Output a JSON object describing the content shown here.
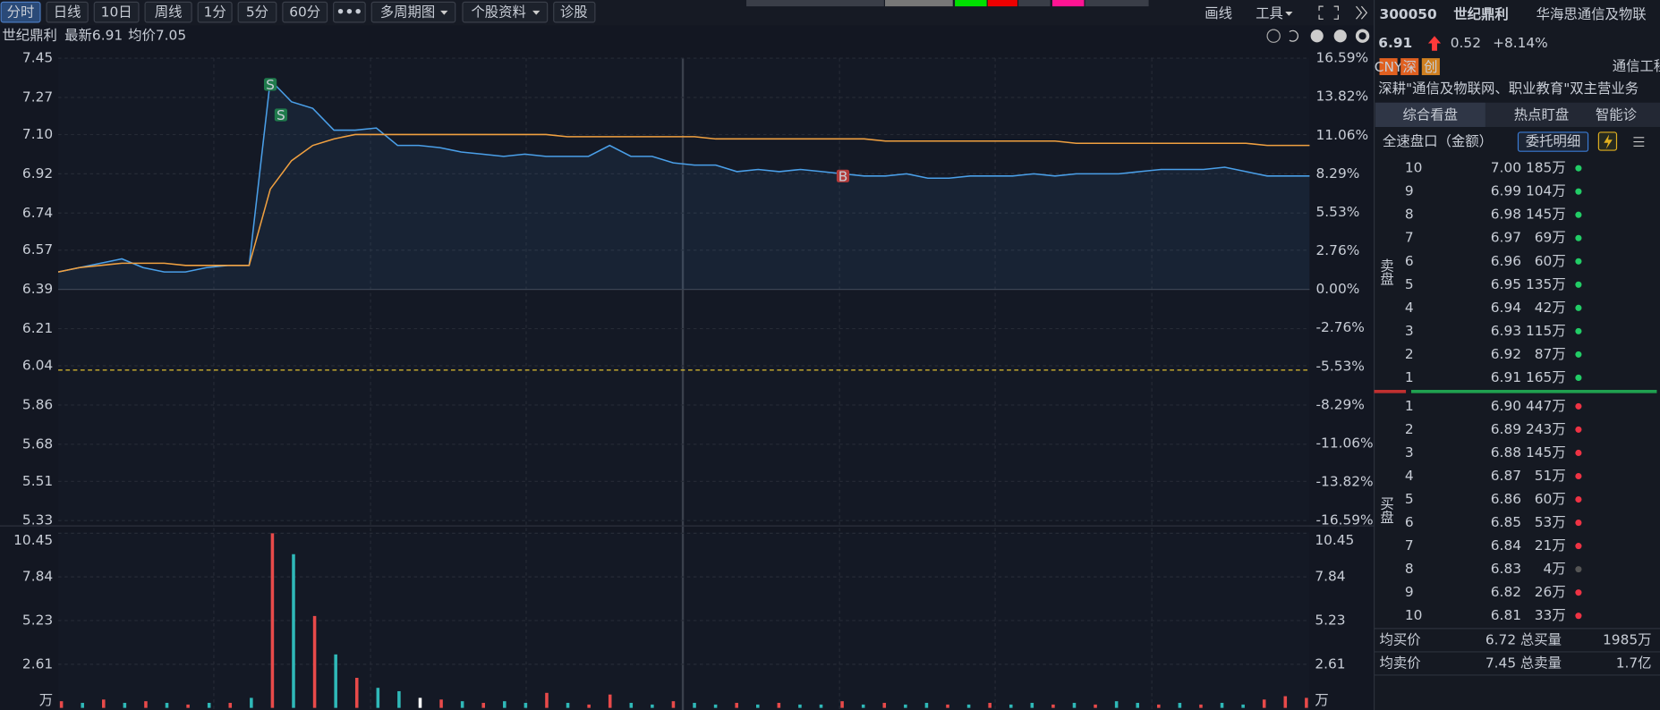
{
  "toolbar": {
    "tabs": [
      "分时",
      "日线",
      "10日",
      "周线",
      "1分",
      "5分",
      "60分"
    ],
    "more": "•••",
    "menus": [
      "多周期图",
      "个股资料"
    ],
    "diagnose": "诊股",
    "draw": "画线",
    "tools": "工具"
  },
  "chart_data": [
    {
      "type": "line",
      "title": "世纪鼎利",
      "series": [
        {
          "name": "最新6.91",
          "color": "#4a9fe8",
          "values": [
            6.47,
            6.49,
            6.51,
            6.53,
            6.49,
            6.47,
            6.47,
            6.49,
            6.5,
            6.5,
            7.35,
            7.25,
            7.22,
            7.12,
            7.12,
            7.13,
            7.05,
            7.05,
            7.04,
            7.02,
            7.01,
            7.0,
            7.01,
            7.0,
            7.0,
            7.0,
            7.05,
            7.0,
            7.0,
            6.97,
            6.96,
            6.96,
            6.93,
            6.94,
            6.93,
            6.94,
            6.93,
            6.92,
            6.91,
            6.91,
            6.92,
            6.9,
            6.9,
            6.91,
            6.91,
            6.91,
            6.92,
            6.91,
            6.92,
            6.92,
            6.92,
            6.93,
            6.94,
            6.94,
            6.94,
            6.95,
            6.93,
            6.91,
            6.91,
            6.91
          ]
        },
        {
          "name": "均价7.05",
          "color": "#f0a040",
          "values": [
            6.47,
            6.49,
            6.5,
            6.51,
            6.51,
            6.51,
            6.5,
            6.5,
            6.5,
            6.5,
            6.85,
            6.98,
            7.05,
            7.08,
            7.1,
            7.1,
            7.1,
            7.1,
            7.1,
            7.1,
            7.1,
            7.1,
            7.1,
            7.1,
            7.09,
            7.09,
            7.09,
            7.09,
            7.09,
            7.09,
            7.09,
            7.08,
            7.08,
            7.08,
            7.08,
            7.08,
            7.08,
            7.08,
            7.08,
            7.07,
            7.07,
            7.07,
            7.07,
            7.07,
            7.07,
            7.07,
            7.07,
            7.07,
            7.06,
            7.06,
            7.06,
            7.06,
            7.06,
            7.06,
            7.06,
            7.06,
            7.06,
            7.05,
            7.05,
            7.05
          ]
        }
      ],
      "annotations": [
        {
          "label": "S",
          "x": 10,
          "y": 7.33,
          "color": "#1f7a4c"
        },
        {
          "label": "S",
          "x": 10.5,
          "y": 7.19,
          "color": "#1f7a4c"
        },
        {
          "label": "B",
          "x": 37,
          "y": 6.91,
          "color": "#b23a3a"
        }
      ],
      "reference_line": 6.02,
      "ylim": [
        5.33,
        7.45
      ],
      "yticks": [
        7.45,
        7.27,
        {
          "value": 7.1,
          "label": "7.10"
        },
        6.92,
        6.74,
        6.57,
        6.39,
        6.21,
        6.04,
        5.86,
        5.68,
        5.51,
        5.33
      ],
      "y2lim": [
        -16.59,
        16.59
      ],
      "y2ticks": [
        {
          "value": 16.59,
          "label": "16.59%"
        },
        {
          "value": 13.82,
          "label": "13.82%"
        },
        {
          "value": 11.06,
          "label": "11.06%"
        },
        {
          "value": 8.29,
          "label": "8.29%"
        },
        {
          "value": 5.53,
          "label": "5.53%"
        },
        {
          "value": 2.76,
          "label": "2.76%"
        },
        {
          "value": 0,
          "label": "0.00%"
        },
        {
          "value": -2.76,
          "label": "-2.76%"
        },
        {
          "value": -5.53,
          "label": "-5.53%"
        },
        {
          "value": -8.29,
          "label": "-8.29%"
        },
        {
          "value": -11.06,
          "label": "-11.06%"
        },
        {
          "value": -13.82,
          "label": "-13.82%"
        },
        {
          "value": -16.59,
          "label": "-16.59%"
        }
      ],
      "grid": true
    },
    {
      "type": "bar",
      "unit": "万",
      "values": [
        0.4,
        0.3,
        0.5,
        0.3,
        0.4,
        0.3,
        0.2,
        0.3,
        0.3,
        0.6,
        10.45,
        9.2,
        5.5,
        3.2,
        1.8,
        1.2,
        1.0,
        0.6,
        0.5,
        0.4,
        0.3,
        0.4,
        0.3,
        0.9,
        0.3,
        0.2,
        0.8,
        0.3,
        0.2,
        0.4,
        0.3,
        0.2,
        0.3,
        0.2,
        0.3,
        0.2,
        0.2,
        0.4,
        0.2,
        0.3,
        0.2,
        0.3,
        0.2,
        0.2,
        0.3,
        0.2,
        0.3,
        0.2,
        0.3,
        0.2,
        0.4,
        0.3,
        0.2,
        0.3,
        0.2,
        0.3,
        0.2,
        0.5,
        0.7,
        0.6
      ],
      "colors": [
        "#e84a4a",
        "#2fb8b8",
        "#e84a4a",
        "#2fb8b8",
        "#e84a4a",
        "#2fb8b8",
        "#e84a4a",
        "#2fb8b8",
        "#e84a4a",
        "#2fb8b8",
        "#e84a4a",
        "#2fb8b8",
        "#e84a4a",
        "#2fb8b8",
        "#e84a4a",
        "#2fb8b8",
        "#2fb8b8",
        "#ffffff",
        "#e84a4a",
        "#2fb8b8",
        "#e84a4a",
        "#2fb8b8",
        "#2fb8b8",
        "#e84a4a",
        "#2fb8b8",
        "#e84a4a",
        "#e84a4a",
        "#2fb8b8",
        "#2fb8b8",
        "#e84a4a",
        "#2fb8b8",
        "#2fb8b8",
        "#e84a4a",
        "#2fb8b8",
        "#e84a4a",
        "#2fb8b8",
        "#2fb8b8",
        "#e84a4a",
        "#2fb8b8",
        "#e84a4a",
        "#2fb8b8",
        "#2fb8b8",
        "#e84a4a",
        "#2fb8b8",
        "#e84a4a",
        "#2fb8b8",
        "#2fb8b8",
        "#e84a4a",
        "#2fb8b8",
        "#e84a4a",
        "#2fb8b8",
        "#2fb8b8",
        "#e84a4a",
        "#2fb8b8",
        "#e84a4a",
        "#2fb8b8",
        "#2fb8b8",
        "#e84a4a",
        "#e84a4a",
        "#e84a4a"
      ],
      "ylim": [
        0,
        10.45
      ],
      "yticks": [
        10.45,
        7.84,
        5.23,
        2.61
      ],
      "grid": true
    }
  ],
  "quote": {
    "code": "300050",
    "name": "世纪鼎利",
    "sector": "华海思通信及物联",
    "price": "6.91",
    "change": "0.52",
    "change_pct": "+8.14%",
    "tags": [
      "CNY",
      "深",
      "创"
    ],
    "industry": "通信工程",
    "description": "深耕\"通信及物联网、职业教育\"双主营业务",
    "tabs": [
      "综合看盘",
      "热点盯盘",
      "智能诊"
    ],
    "book_title": "全速盘口（金额）",
    "detail_button": "委托明细",
    "sell_label": "卖盘",
    "buy_label": "买盘",
    "sell": [
      [
        "10",
        "7.00",
        "185万"
      ],
      [
        "9",
        "6.99",
        "104万"
      ],
      [
        "8",
        "6.98",
        "145万"
      ],
      [
        "7",
        "6.97",
        "69万"
      ],
      [
        "6",
        "6.96",
        "60万"
      ],
      [
        "5",
        "6.95",
        "135万"
      ],
      [
        "4",
        "6.94",
        "42万"
      ],
      [
        "3",
        "6.93",
        "115万"
      ],
      [
        "2",
        "6.92",
        "87万"
      ],
      [
        "1",
        "6.91",
        "165万"
      ]
    ],
    "buy": [
      [
        "1",
        "6.90",
        "447万"
      ],
      [
        "2",
        "6.89",
        "243万"
      ],
      [
        "3",
        "6.88",
        "145万"
      ],
      [
        "4",
        "6.87",
        "51万"
      ],
      [
        "5",
        "6.86",
        "60万"
      ],
      [
        "6",
        "6.85",
        "53万"
      ],
      [
        "7",
        "6.84",
        "21万"
      ],
      [
        "8",
        "6.83",
        "4万"
      ],
      [
        "9",
        "6.82",
        "26万"
      ],
      [
        "10",
        "6.81",
        "33万"
      ]
    ],
    "sell_dot_colors": [
      "#22cc66",
      "#22cc66",
      "#22cc66",
      "#22cc66",
      "#22cc66",
      "#22cc66",
      "#22cc66",
      "#22cc66",
      "#22cc66",
      "#22cc66"
    ],
    "buy_dot_colors": [
      "#ee3344",
      "#ee3344",
      "#ee3344",
      "#ee3344",
      "#ee3344",
      "#ee3344",
      "#ee3344",
      "#555555",
      "#ee3344",
      "#ee3344"
    ],
    "summary": [
      [
        "均买价",
        "6.72",
        "总买量",
        "1985万"
      ],
      [
        "均卖价",
        "7.45",
        "总卖量",
        "1.7亿"
      ]
    ]
  }
}
